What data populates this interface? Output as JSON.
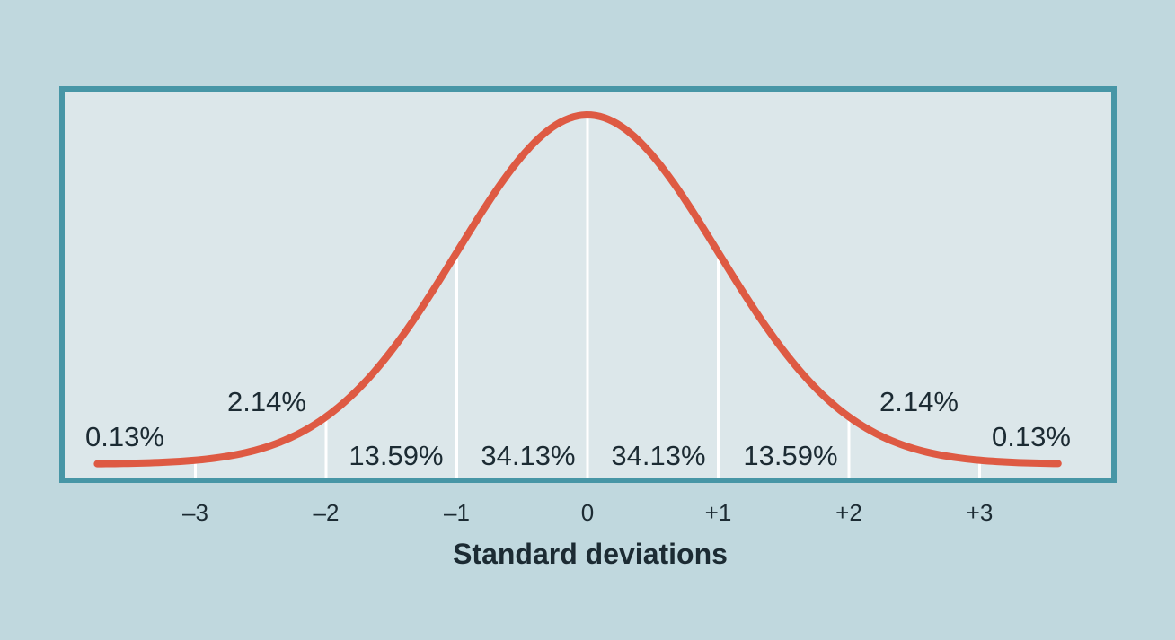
{
  "chart_data": {
    "type": "area",
    "distribution": "normal",
    "x": [
      -3.75,
      3.6
    ],
    "xlim": [
      -4.0,
      3.9
    ],
    "xlabel": "Standard deviations",
    "tick_values": [
      -3,
      -2,
      -1,
      0,
      1,
      2,
      3
    ],
    "tick_labels": [
      "–3",
      "–2",
      "–1",
      "0",
      "+1",
      "+2",
      "+3"
    ],
    "band_labels": [
      {
        "x_from": -4.0,
        "x_to": -3,
        "label": "0.13%"
      },
      {
        "x_from": -3,
        "x_to": -2,
        "label": "2.14%"
      },
      {
        "x_from": -2,
        "x_to": -1,
        "label": "13.59%"
      },
      {
        "x_from": -1,
        "x_to": 0,
        "label": "34.13%"
      },
      {
        "x_from": 0,
        "x_to": 1,
        "label": "34.13%"
      },
      {
        "x_from": 1,
        "x_to": 2,
        "label": "13.59%"
      },
      {
        "x_from": 2,
        "x_to": 3,
        "label": "2.14%"
      },
      {
        "x_from": 3,
        "x_to": 3.9,
        "label": "0.13%"
      }
    ],
    "grid": false,
    "legend": "none"
  },
  "colors": {
    "background": "#c0d8de",
    "plot_area": "#dce7ea",
    "frame": "#4796a6",
    "curve": "#de5a43",
    "divider": "#ffffff",
    "text": "#1c2b33"
  }
}
